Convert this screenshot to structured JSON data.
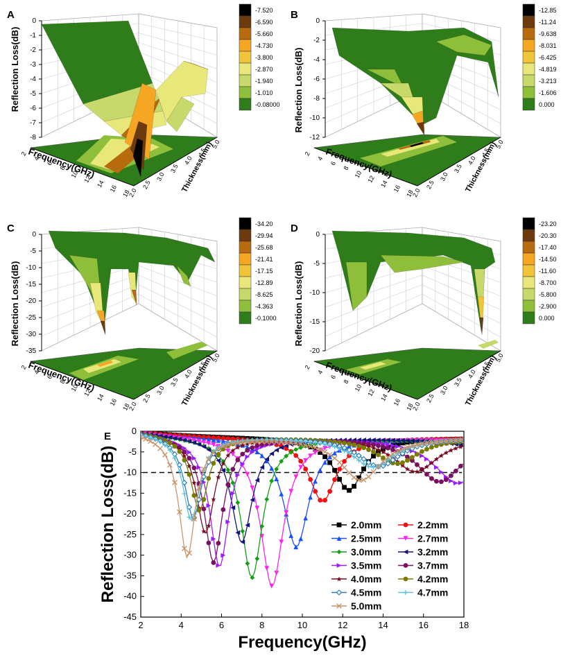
{
  "chart_data": [
    {
      "panel": "A",
      "type": "3d-surface",
      "zlabel": "Reflection Loss(dB)",
      "xlabel": "Frequency(GHz)",
      "ylabel": "Thickness(mm)",
      "zticks": [
        "0",
        "-1",
        "-2",
        "-3",
        "-4",
        "-5",
        "-6",
        "-7",
        "-8"
      ],
      "xticks": [
        "2",
        "4",
        "6",
        "8",
        "10",
        "12",
        "14",
        "16",
        "18"
      ],
      "yticks": [
        "2.0",
        "2.5",
        "3.0",
        "3.5",
        "4.0",
        "4.5",
        "5.0"
      ],
      "colorbar": [
        "-7.520",
        "-6.590",
        "-5.660",
        "-4.730",
        "-3.800",
        "-2.870",
        "-1.940",
        "-1.010",
        "-0.08000"
      ],
      "colors": [
        "#000000",
        "#6b3a0e",
        "#b86a0e",
        "#f5a623",
        "#f0c53a",
        "#e8e87a",
        "#c6d96a",
        "#8fbf3a",
        "#2f7d1a"
      ]
    },
    {
      "panel": "B",
      "type": "3d-surface",
      "zlabel": "Reflection Loss(dB)",
      "xlabel": "Frequency(GHz)",
      "ylabel": "Thickness(mm)",
      "zticks": [
        "0",
        "-2",
        "-4",
        "-6",
        "-8",
        "-10",
        "-12"
      ],
      "xticks": [
        "2",
        "4",
        "6",
        "8",
        "10",
        "12",
        "14",
        "16",
        "18"
      ],
      "yticks": [
        "2.0",
        "2.5",
        "3.0",
        "3.5",
        "4.0",
        "4.5",
        "5.0"
      ],
      "colorbar": [
        "-12.85",
        "-11.24",
        "-9.638",
        "-8.031",
        "-6.425",
        "-4.819",
        "-3.213",
        "-1.606",
        "0.000"
      ],
      "colors": [
        "#000000",
        "#6b3a0e",
        "#b86a0e",
        "#f5a623",
        "#f0c53a",
        "#e8e87a",
        "#c6d96a",
        "#8fbf3a",
        "#2f7d1a"
      ]
    },
    {
      "panel": "C",
      "type": "3d-surface",
      "zlabel": "Reflection Loss(dB)",
      "xlabel": "Frequency(GHz)",
      "ylabel": "Thickness(mm)",
      "zticks": [
        "0",
        "-5",
        "-10",
        "-15",
        "-20",
        "-25",
        "-30",
        "-35"
      ],
      "xticks": [
        "2",
        "4",
        "6",
        "8",
        "10",
        "12",
        "14",
        "16",
        "18"
      ],
      "yticks": [
        "2.0",
        "2.5",
        "3.0",
        "3.5",
        "4.0",
        "4.5",
        "5.0"
      ],
      "colorbar": [
        "-34.20",
        "-29.94",
        "-25.68",
        "-21.41",
        "-17.15",
        "-12.89",
        "-8.625",
        "-4.363",
        "-0.1000"
      ],
      "colors": [
        "#000000",
        "#6b3a0e",
        "#b86a0e",
        "#f5a623",
        "#f0c53a",
        "#e8e87a",
        "#c6d96a",
        "#8fbf3a",
        "#2f7d1a"
      ]
    },
    {
      "panel": "D",
      "type": "3d-surface",
      "zlabel": "Reflection Loss(dB)",
      "xlabel": "Frequency(GHz)",
      "ylabel": "Thickness(mm)",
      "zticks": [
        "0",
        "-5",
        "-10",
        "-15",
        "-20"
      ],
      "xticks": [
        "2",
        "4",
        "6",
        "8",
        "10",
        "12",
        "14",
        "16",
        "18"
      ],
      "yticks": [
        "2.0",
        "2.5",
        "3.0",
        "3.5",
        "4.0",
        "4.5",
        "5.0"
      ],
      "colorbar": [
        "-23.20",
        "-20.30",
        "-17.40",
        "-14.50",
        "-11.60",
        "-8.700",
        "-5.800",
        "-2.900",
        "0.000"
      ],
      "colors": [
        "#000000",
        "#6b3a0e",
        "#b86a0e",
        "#f5a623",
        "#f0c53a",
        "#e8e87a",
        "#c6d96a",
        "#8fbf3a",
        "#2f7d1a"
      ]
    },
    {
      "panel": "E",
      "type": "line",
      "xlabel": "Frequency(GHz)",
      "ylabel": "Reflection Loss(dB)",
      "xlim": [
        2,
        18
      ],
      "ylim": [
        -45,
        0
      ],
      "xticks": [
        2,
        4,
        6,
        8,
        10,
        12,
        14,
        16,
        18
      ],
      "yticks": [
        0,
        -5,
        -10,
        -15,
        -20,
        -25,
        -30,
        -35,
        -40,
        -45
      ],
      "reference_line": -10,
      "series": [
        {
          "name": "2.0mm",
          "color": "#000000",
          "marker": "square",
          "fmin": 12.3,
          "rlmin": -12.8
        },
        {
          "name": "2.2mm",
          "color": "#ee1111",
          "marker": "circle",
          "fmin": 11.0,
          "rlmin": -15.5
        },
        {
          "name": "2.5mm",
          "color": "#1a4fff",
          "marker": "triangle-up",
          "fmin": 9.7,
          "rlmin": -26.5
        },
        {
          "name": "2.7mm",
          "color": "#ff22ee",
          "marker": "triangle-down",
          "fmin": 8.5,
          "rlmin": -36.0
        },
        {
          "name": "3.0mm",
          "color": "#11a011",
          "marker": "diamond",
          "fmin": 7.5,
          "rlmin": -34.0
        },
        {
          "name": "3.2mm",
          "color": "#12127a",
          "marker": "triangle-left",
          "fmin": 7.0,
          "rlmin": -25.5
        },
        {
          "name": "3.5mm",
          "color": "#9b1aff",
          "marker": "triangle-right",
          "fmin": 5.9,
          "rlmin": -31.5
        },
        {
          "name": "3.7mm",
          "color": "#7a1060",
          "marker": "hexagon",
          "fmin": 5.6,
          "rlmin": -30.5
        },
        {
          "name": "4.0mm",
          "color": "#7a0a20",
          "marker": "star",
          "fmin": 5.2,
          "rlmin": -23.5
        },
        {
          "name": "4.2mm",
          "color": "#7a7a00",
          "marker": "pentagon",
          "fmin": 4.9,
          "rlmin": -18.0
        },
        {
          "name": "4.5mm",
          "color": "#2d7db5",
          "marker": "diamond-open",
          "fmin": 4.6,
          "rlmin": -20.0
        },
        {
          "name": "4.7mm",
          "color": "#60c0d8",
          "marker": "plus",
          "fmin": 4.5,
          "rlmin": -20.5
        },
        {
          "name": "5.0mm",
          "color": "#c8946a",
          "marker": "x",
          "fmin": 4.3,
          "rlmin": -29.5
        }
      ]
    }
  ]
}
